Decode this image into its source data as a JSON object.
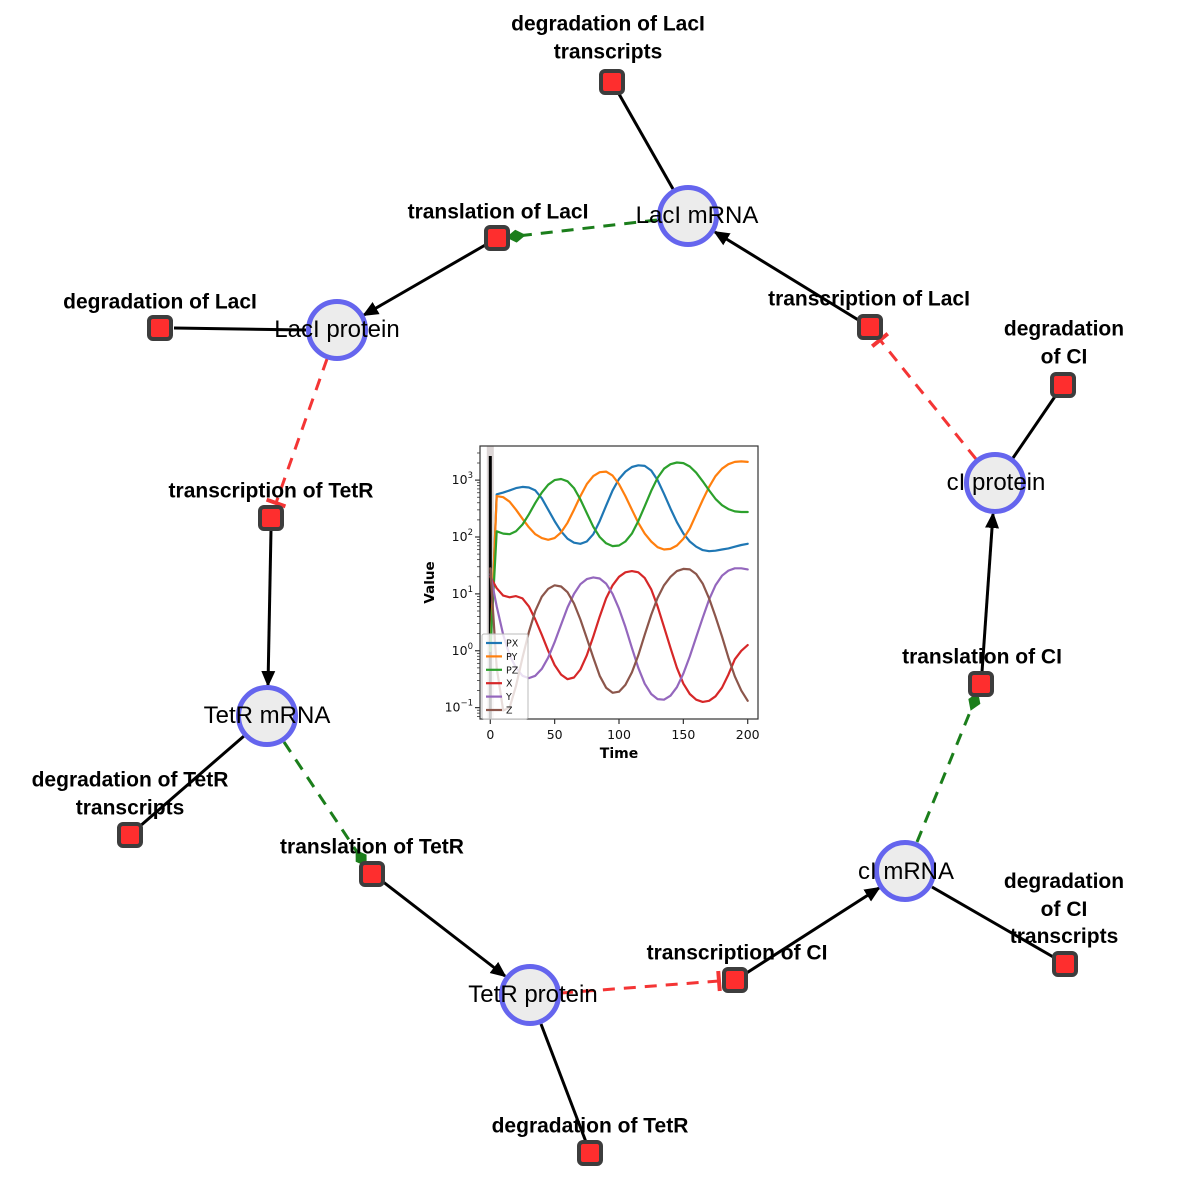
{
  "diagram": {
    "species": [
      {
        "id": "laci-mrna",
        "label": "LacI mRNA"
      },
      {
        "id": "laci-protein",
        "label": "LacI protein"
      },
      {
        "id": "ci-protein",
        "label": "cI protein"
      },
      {
        "id": "tetr-mrna",
        "label": "TetR mRNA"
      },
      {
        "id": "tetr-protein",
        "label": "TetR protein"
      },
      {
        "id": "ci-mrna",
        "label": "cI mRNA"
      }
    ],
    "reactions": [
      {
        "id": "deg-laci-transcripts",
        "label": "degradation of LacI\ntranscripts"
      },
      {
        "id": "translation-laci",
        "label": "translation of LacI"
      },
      {
        "id": "deg-laci",
        "label": "degradation of LacI"
      },
      {
        "id": "transcription-laci",
        "label": "transcription of LacI"
      },
      {
        "id": "deg-ci",
        "label": "degradation of CI"
      },
      {
        "id": "transcription-tetr",
        "label": "transcription of TetR"
      },
      {
        "id": "deg-tetr-transcripts",
        "label": "degradation of TetR\ntranscripts"
      },
      {
        "id": "translation-tetr",
        "label": "translation of TetR"
      },
      {
        "id": "deg-tetr",
        "label": "degradation of TetR"
      },
      {
        "id": "transcription-ci",
        "label": "transcription of CI"
      },
      {
        "id": "deg-ci-transcripts",
        "label": "degradation of CI\ntranscripts"
      },
      {
        "id": "translation-ci",
        "label": "translation of CI"
      }
    ],
    "edges": [
      {
        "from": "LacI mRNA",
        "to": "degradation of LacI transcripts",
        "type": "consumption"
      },
      {
        "from": "translation of LacI",
        "to": "LacI protein",
        "type": "production"
      },
      {
        "from": "LacI protein",
        "to": "degradation of LacI",
        "type": "consumption"
      },
      {
        "from": "transcription of LacI",
        "to": "LacI mRNA",
        "type": "production"
      },
      {
        "from": "cI protein",
        "to": "degradation of CI",
        "type": "consumption"
      },
      {
        "from": "transcription of TetR",
        "to": "TetR mRNA",
        "type": "production"
      },
      {
        "from": "TetR mRNA",
        "to": "degradation of TetR transcripts",
        "type": "consumption"
      },
      {
        "from": "translation of TetR",
        "to": "TetR protein",
        "type": "production"
      },
      {
        "from": "TetR protein",
        "to": "degradation of TetR",
        "type": "consumption"
      },
      {
        "from": "transcription of CI",
        "to": "cI mRNA",
        "type": "production"
      },
      {
        "from": "cI mRNA",
        "to": "degradation of CI transcripts",
        "type": "consumption"
      },
      {
        "from": "translation of CI",
        "to": "cI protein",
        "type": "production"
      },
      {
        "from": "LacI mRNA",
        "to": "translation of LacI",
        "type": "stimulation"
      },
      {
        "from": "TetR mRNA",
        "to": "translation of TetR",
        "type": "stimulation"
      },
      {
        "from": "cI mRNA",
        "to": "translation of CI",
        "type": "stimulation"
      },
      {
        "from": "LacI protein",
        "to": "transcription of TetR",
        "type": "inhibition"
      },
      {
        "from": "cI protein",
        "to": "transcription of LacI",
        "type": "inhibition"
      },
      {
        "from": "TetR protein",
        "to": "transcription of CI",
        "type": "inhibition"
      }
    ],
    "colors": {
      "species_fill": "#ececec",
      "species_border": "#6565ee",
      "reaction_fill": "#fe2e2e",
      "reaction_border": "#3d3d3d",
      "edge_solid": "#000000",
      "edge_stimulation": "#1b7e1b",
      "edge_inhibition": "#f43535"
    }
  },
  "chart_data": {
    "type": "line",
    "xlabel": "Time",
    "ylabel": "Value",
    "yscale": "log",
    "xlim": [
      -8,
      208
    ],
    "ylog_lim": [
      -1.2,
      3.6
    ],
    "xticks": [
      0,
      50,
      100,
      150,
      200
    ],
    "ytick_exponents": [
      3,
      2,
      1,
      0,
      -1
    ],
    "legend_position": "lower left",
    "marker_line_x": 0,
    "x_start": 0,
    "x_step": 5,
    "series": [
      {
        "name": "PX",
        "color": "#1f77b4",
        "log10_values": [
          0.0,
          2.75,
          2.78,
          2.82,
          2.86,
          2.88,
          2.87,
          2.82,
          2.68,
          2.48,
          2.28,
          2.1,
          1.97,
          1.9,
          1.88,
          1.92,
          2.05,
          2.28,
          2.55,
          2.82,
          3.02,
          3.15,
          3.23,
          3.26,
          3.25,
          3.17,
          3.0,
          2.76,
          2.5,
          2.26,
          2.06,
          1.92,
          1.83,
          1.77,
          1.75,
          1.76,
          1.78,
          1.8,
          1.83,
          1.86,
          1.88
        ]
      },
      {
        "name": "PY",
        "color": "#ff7f0e",
        "log10_values": [
          0.0,
          2.72,
          2.7,
          2.62,
          2.48,
          2.32,
          2.17,
          2.05,
          1.98,
          1.95,
          1.98,
          2.08,
          2.25,
          2.48,
          2.72,
          2.93,
          3.07,
          3.14,
          3.15,
          3.08,
          2.93,
          2.72,
          2.48,
          2.25,
          2.06,
          1.92,
          1.82,
          1.78,
          1.79,
          1.85,
          1.97,
          2.15,
          2.4,
          2.65,
          2.88,
          3.07,
          3.2,
          3.28,
          3.32,
          3.33,
          3.32
        ]
      },
      {
        "name": "PZ",
        "color": "#2ca02c",
        "log10_values": [
          0.0,
          2.1,
          2.06,
          2.05,
          2.1,
          2.22,
          2.4,
          2.6,
          2.78,
          2.92,
          3.0,
          3.02,
          2.98,
          2.86,
          2.66,
          2.42,
          2.18,
          2.0,
          1.89,
          1.84,
          1.85,
          1.92,
          2.06,
          2.28,
          2.54,
          2.81,
          3.04,
          3.2,
          3.28,
          3.31,
          3.3,
          3.24,
          3.13,
          2.98,
          2.82,
          2.67,
          2.56,
          2.49,
          2.45,
          2.44,
          2.44
        ]
      },
      {
        "name": "X",
        "color": "#d62728",
        "log10_values": [
          1.3,
          1.1,
          0.97,
          0.94,
          0.96,
          0.92,
          0.78,
          0.55,
          0.28,
          0.0,
          -0.25,
          -0.42,
          -0.5,
          -0.47,
          -0.33,
          -0.08,
          0.25,
          0.6,
          0.92,
          1.15,
          1.3,
          1.38,
          1.4,
          1.38,
          1.28,
          1.08,
          0.78,
          0.42,
          0.05,
          -0.3,
          -0.58,
          -0.76,
          -0.86,
          -0.9,
          -0.88,
          -0.8,
          -0.65,
          -0.42,
          -0.15,
          0.0,
          0.1
        ]
      },
      {
        "name": "Y",
        "color": "#9467bd",
        "log10_values": [
          1.35,
          0.78,
          0.28,
          -0.08,
          -0.3,
          -0.44,
          -0.48,
          -0.44,
          -0.32,
          -0.12,
          0.15,
          0.46,
          0.76,
          1.0,
          1.17,
          1.26,
          1.29,
          1.27,
          1.18,
          1.0,
          0.74,
          0.42,
          0.05,
          -0.3,
          -0.58,
          -0.76,
          -0.85,
          -0.86,
          -0.79,
          -0.64,
          -0.4,
          -0.1,
          0.24,
          0.58,
          0.9,
          1.15,
          1.32,
          1.41,
          1.45,
          1.45,
          1.43
        ]
      },
      {
        "name": "Z",
        "color": "#8c564b",
        "log10_values": [
          1.45,
          -0.3,
          -1.05,
          -1.0,
          -0.62,
          -0.12,
          0.33,
          0.7,
          0.95,
          1.09,
          1.15,
          1.13,
          1.03,
          0.83,
          0.55,
          0.22,
          -0.12,
          -0.44,
          -0.65,
          -0.74,
          -0.72,
          -0.6,
          -0.38,
          -0.08,
          0.28,
          0.63,
          0.93,
          1.15,
          1.3,
          1.4,
          1.44,
          1.43,
          1.35,
          1.18,
          0.92,
          0.6,
          0.25,
          -0.12,
          -0.45,
          -0.7,
          -0.88
        ]
      }
    ]
  }
}
